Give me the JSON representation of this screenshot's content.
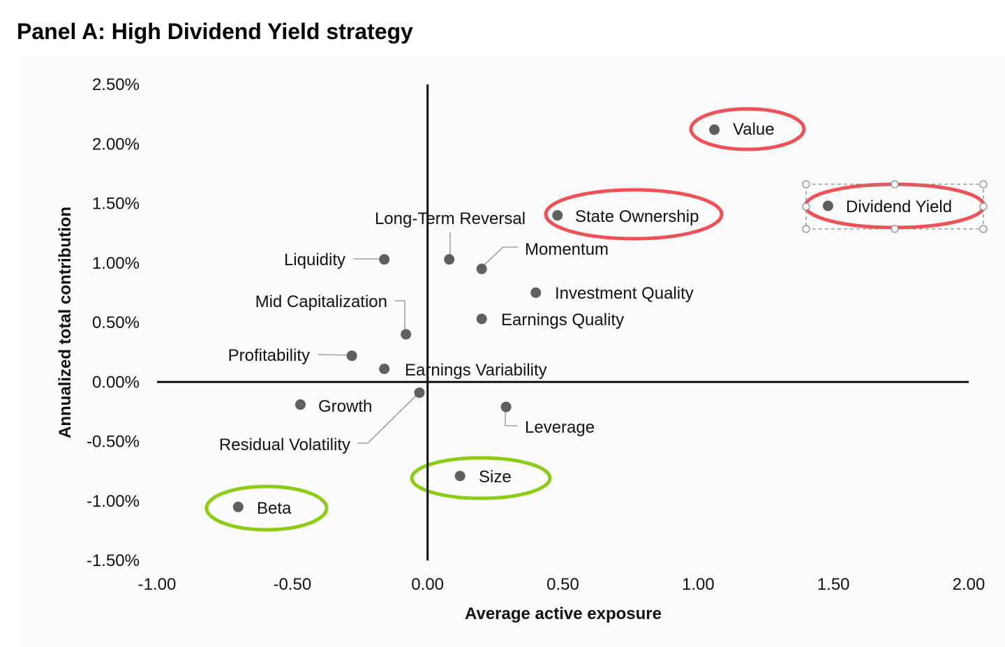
{
  "chart_data": {
    "type": "scatter",
    "title": "Panel A: High Dividend Yield strategy",
    "xlabel": "Average active exposure",
    "ylabel": "Annualized total contribution",
    "xlim": [
      -1.0,
      2.0
    ],
    "ylim": [
      -1.5,
      2.5
    ],
    "x_ticks": [
      "-1.00",
      "-0.50",
      "0.00",
      "0.50",
      "1.00",
      "1.50",
      "2.00"
    ],
    "y_ticks": [
      "2.50%",
      "2.00%",
      "1.50%",
      "1.00%",
      "0.50%",
      "0.00%",
      "-0.50%",
      "-1.00%",
      "-1.50%"
    ],
    "grid": false,
    "points": [
      {
        "label": "Value",
        "x": 1.06,
        "y": 2.12,
        "highlight": "red"
      },
      {
        "label": "Dividend Yield",
        "x": 1.48,
        "y": 1.48,
        "highlight": "red",
        "selected": true
      },
      {
        "label": "State Ownership",
        "x": 0.48,
        "y": 1.4,
        "highlight": "red"
      },
      {
        "label": "Long-Term Reversal",
        "x": 0.08,
        "y": 1.03
      },
      {
        "label": "Momentum",
        "x": 0.2,
        "y": 0.95
      },
      {
        "label": "Liquidity",
        "x": -0.16,
        "y": 1.03
      },
      {
        "label": "Investment Quality",
        "x": 0.4,
        "y": 0.75
      },
      {
        "label": "Earnings Quality",
        "x": 0.2,
        "y": 0.53
      },
      {
        "label": "Mid Capitalization",
        "x": -0.08,
        "y": 0.4
      },
      {
        "label": "Profitability",
        "x": -0.28,
        "y": 0.22
      },
      {
        "label": "Earnings Variability",
        "x": -0.16,
        "y": 0.11
      },
      {
        "label": "Residual Volatility",
        "x": -0.03,
        "y": -0.09
      },
      {
        "label": "Growth",
        "x": -0.47,
        "y": -0.19
      },
      {
        "label": "Leverage",
        "x": 0.29,
        "y": -0.21
      },
      {
        "label": "Size",
        "x": 0.12,
        "y": -0.79,
        "highlight": "green"
      },
      {
        "label": "Beta",
        "x": -0.7,
        "y": -1.05,
        "highlight": "green"
      }
    ]
  }
}
